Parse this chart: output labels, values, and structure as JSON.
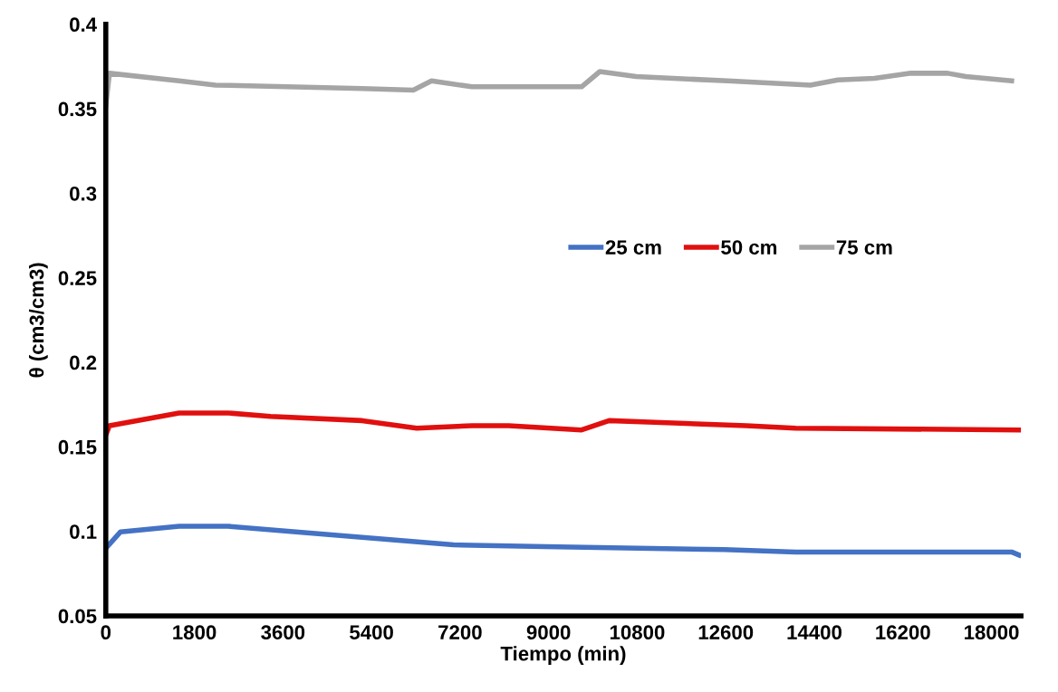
{
  "chart_data": {
    "type": "line",
    "xlabel": "Tiempo (min)",
    "ylabel": "θ (cm3/cm3)",
    "xlim": [
      0,
      18600
    ],
    "xticks": [
      0,
      1800,
      3600,
      5400,
      7200,
      9000,
      10800,
      12600,
      14400,
      16200,
      18000
    ],
    "ylim": [
      0.05,
      0.4
    ],
    "yticks": [
      0.05,
      0.1,
      0.15,
      0.2,
      0.25,
      0.3,
      0.35,
      0.4
    ],
    "grid": false,
    "legend": "right",
    "marker": "none",
    "line_style": "solid",
    "series": [
      {
        "name": "25 cm",
        "color": "#4472c4",
        "x": [
          0,
          300,
          1490,
          2490,
          5210,
          7070,
          8930,
          12570,
          14020,
          18410,
          18560
        ],
        "values": [
          0.09,
          0.0997,
          0.103,
          0.103,
          0.0965,
          0.092,
          0.091,
          0.0892,
          0.0878,
          0.0878,
          0.086
        ]
      },
      {
        "name": "50 cm",
        "color": "#e0100f",
        "x": [
          0,
          74,
          1490,
          2490,
          3350,
          5210,
          6320,
          7440,
          8190,
          9670,
          10230,
          11160,
          13020,
          14020,
          18560
        ],
        "values": [
          0.157,
          0.1625,
          0.17,
          0.17,
          0.168,
          0.1655,
          0.161,
          0.1625,
          0.1625,
          0.16,
          0.1655,
          0.1645,
          0.1625,
          0.161,
          0.16
        ]
      },
      {
        "name": "75 cm",
        "color": "#a5a5a5",
        "x": [
          0,
          74,
          1490,
          2230,
          5210,
          6250,
          6620,
          7440,
          8930,
          9670,
          10040,
          10780,
          12640,
          14320,
          14880,
          15620,
          16360,
          17110,
          17480,
          18410
        ],
        "values": [
          0.352,
          0.371,
          0.3665,
          0.364,
          0.362,
          0.361,
          0.3665,
          0.363,
          0.363,
          0.363,
          0.372,
          0.369,
          0.3665,
          0.364,
          0.367,
          0.368,
          0.371,
          0.371,
          0.369,
          0.3665
        ]
      }
    ]
  }
}
